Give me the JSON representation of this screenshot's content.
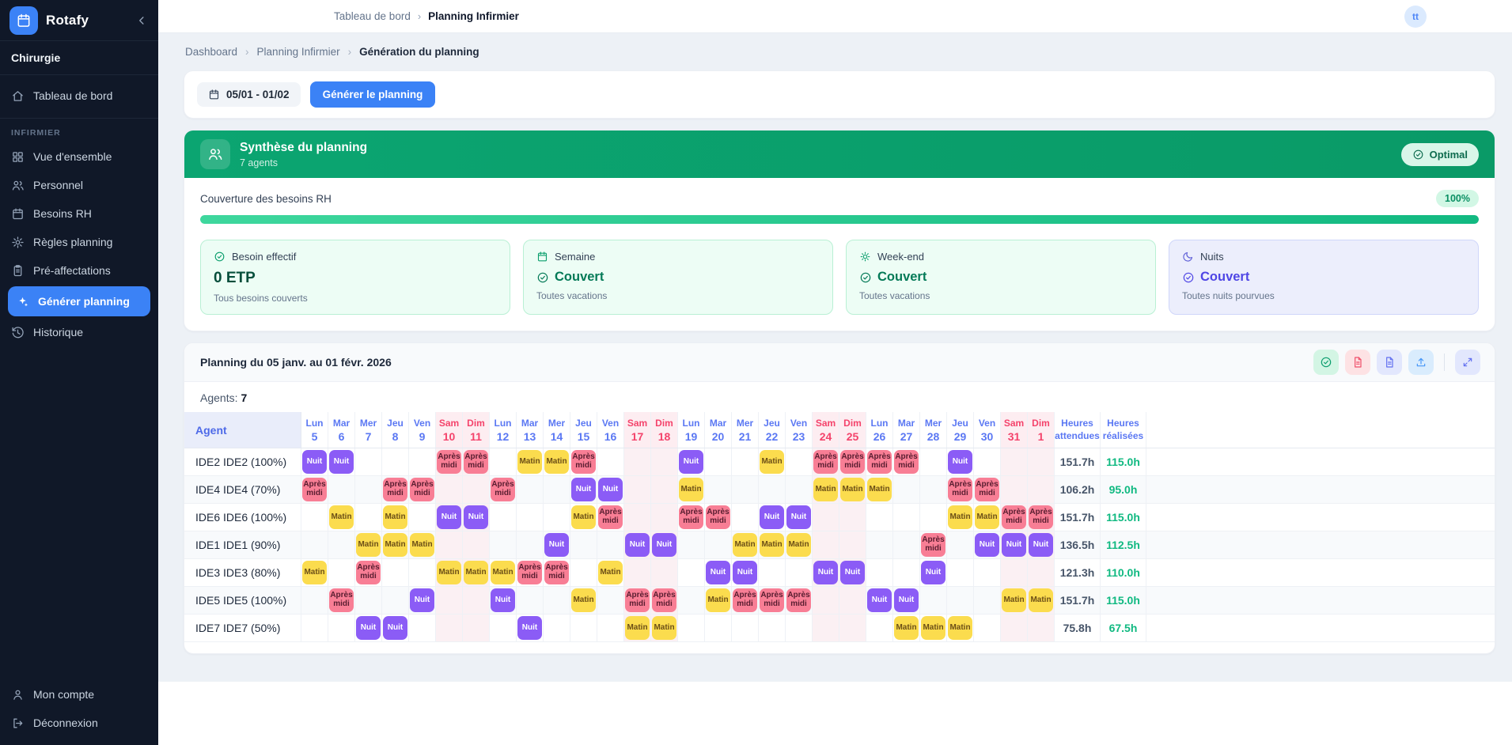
{
  "app": {
    "name": "Rotafy",
    "workspace": "Chirurgie"
  },
  "sidebar": {
    "section_label": "INFIRMIER",
    "items_top": [
      {
        "label": "Tableau de bord",
        "icon": "home"
      }
    ],
    "items": [
      {
        "label": "Vue d'ensemble",
        "icon": "grid",
        "active": false
      },
      {
        "label": "Personnel",
        "icon": "users",
        "active": false
      },
      {
        "label": "Besoins RH",
        "icon": "calendar",
        "active": false
      },
      {
        "label": "Règles planning",
        "icon": "gear",
        "active": false
      },
      {
        "label": "Pré-affectations",
        "icon": "clipboard",
        "active": false
      },
      {
        "label": "Générer planning",
        "icon": "sparkles",
        "active": true
      },
      {
        "label": "Historique",
        "icon": "history",
        "active": false
      }
    ],
    "footer": [
      {
        "label": "Mon compte",
        "icon": "user"
      },
      {
        "label": "Déconnexion",
        "icon": "logout"
      }
    ]
  },
  "topbar": {
    "breadcrumb": [
      "Tableau de bord",
      "Planning Infirmier"
    ],
    "avatar": "tt"
  },
  "page": {
    "breadcrumb": [
      "Dashboard",
      "Planning Infirmier",
      "Génération du planning"
    ]
  },
  "controls": {
    "date_range": "05/01 - 01/02",
    "generate": "Générer le planning"
  },
  "summary": {
    "title": "Synthèse du planning",
    "subtitle": "7 agents",
    "status": "Optimal",
    "coverage_label": "Couverture des besoins RH",
    "coverage_value": "100%",
    "coverage_percent": 100,
    "cards": [
      {
        "icon": "check-circle",
        "theme": "green",
        "label": "Besoin effectif",
        "value": "0 ETP",
        "value_style": "dark",
        "value_icon": "",
        "sub": "Tous besoins couverts"
      },
      {
        "icon": "calendar",
        "theme": "green",
        "label": "Semaine",
        "value": "Couvert",
        "value_style": "green",
        "value_icon": "check-circle",
        "sub": "Toutes vacations"
      },
      {
        "icon": "sun",
        "theme": "green",
        "label": "Week-end",
        "value": "Couvert",
        "value_style": "green",
        "value_icon": "check-circle",
        "sub": "Toutes vacations"
      },
      {
        "icon": "moon",
        "theme": "indigo",
        "label": "Nuits",
        "value": "Couvert",
        "value_style": "indigo",
        "value_icon": "check-circle",
        "sub": "Toutes nuits pourvues"
      }
    ]
  },
  "planning": {
    "title": "Planning du 05 janv. au 01 févr. 2026",
    "agents_label": "Agents:",
    "agents_count": "7",
    "agent_header": "Agent",
    "hours_headers": [
      [
        "Heures",
        "attendues"
      ],
      [
        "Heures",
        "réalisées"
      ]
    ],
    "shift_labels": {
      "M": "Matin",
      "A": "Après midi",
      "N": "Nuit"
    },
    "actions": [
      {
        "name": "validate-button",
        "icon": "check-circle",
        "theme": "green",
        "divided": false
      },
      {
        "name": "export-pdf-button",
        "icon": "file",
        "theme": "red",
        "divided": false
      },
      {
        "name": "export-doc-button",
        "icon": "file",
        "theme": "indigo",
        "divided": false
      },
      {
        "name": "upload-button",
        "icon": "upload",
        "theme": "blue",
        "divided": false
      },
      {
        "name": "fullscreen-button",
        "icon": "expand",
        "theme": "indigo",
        "divided": true
      }
    ],
    "days": [
      {
        "name": "Lun",
        "num": "5",
        "weekend": false
      },
      {
        "name": "Mar",
        "num": "6",
        "weekend": false
      },
      {
        "name": "Mer",
        "num": "7",
        "weekend": false
      },
      {
        "name": "Jeu",
        "num": "8",
        "weekend": false
      },
      {
        "name": "Ven",
        "num": "9",
        "weekend": false
      },
      {
        "name": "Sam",
        "num": "10",
        "weekend": true
      },
      {
        "name": "Dim",
        "num": "11",
        "weekend": true
      },
      {
        "name": "Lun",
        "num": "12",
        "weekend": false
      },
      {
        "name": "Mar",
        "num": "13",
        "weekend": false
      },
      {
        "name": "Mer",
        "num": "14",
        "weekend": false
      },
      {
        "name": "Jeu",
        "num": "15",
        "weekend": false
      },
      {
        "name": "Ven",
        "num": "16",
        "weekend": false
      },
      {
        "name": "Sam",
        "num": "17",
        "weekend": true
      },
      {
        "name": "Dim",
        "num": "18",
        "weekend": true
      },
      {
        "name": "Lun",
        "num": "19",
        "weekend": false
      },
      {
        "name": "Mar",
        "num": "20",
        "weekend": false
      },
      {
        "name": "Mer",
        "num": "21",
        "weekend": false
      },
      {
        "name": "Jeu",
        "num": "22",
        "weekend": false
      },
      {
        "name": "Ven",
        "num": "23",
        "weekend": false
      },
      {
        "name": "Sam",
        "num": "24",
        "weekend": true
      },
      {
        "name": "Dim",
        "num": "25",
        "weekend": true
      },
      {
        "name": "Lun",
        "num": "26",
        "weekend": false
      },
      {
        "name": "Mar",
        "num": "27",
        "weekend": false
      },
      {
        "name": "Mer",
        "num": "28",
        "weekend": false
      },
      {
        "name": "Jeu",
        "num": "29",
        "weekend": false
      },
      {
        "name": "Ven",
        "num": "30",
        "weekend": false
      },
      {
        "name": "Sam",
        "num": "31",
        "weekend": true
      },
      {
        "name": "Dim",
        "num": "1",
        "weekend": true
      }
    ],
    "rows": [
      {
        "agent": "IDE2 IDE2 (100%)",
        "shifts": [
          "N",
          "N",
          "",
          "",
          "",
          "A",
          "A",
          "",
          "M",
          "M",
          "A",
          "",
          "",
          "",
          "N",
          "",
          "",
          "M",
          "",
          "A",
          "A",
          "A",
          "A",
          "",
          "N",
          "",
          "",
          ""
        ],
        "expected": "151.7h",
        "realized": "115.0h"
      },
      {
        "agent": "IDE4 IDE4 (70%)",
        "shifts": [
          "A",
          "",
          "",
          "A",
          "A",
          "",
          "",
          "A",
          "",
          "",
          "N",
          "N",
          "",
          "",
          "M",
          "",
          "",
          "",
          "",
          "M",
          "M",
          "M",
          "",
          "",
          "A",
          "A",
          "",
          ""
        ],
        "expected": "106.2h",
        "realized": "95.0h"
      },
      {
        "agent": "IDE6 IDE6 (100%)",
        "shifts": [
          "",
          "M",
          "",
          "M",
          "",
          "N",
          "N",
          "",
          "",
          "",
          "M",
          "A",
          "",
          "",
          "A",
          "A",
          "",
          "N",
          "N",
          "",
          "",
          "",
          "",
          "",
          "M",
          "M",
          "A",
          "A"
        ],
        "expected": "151.7h",
        "realized": "115.0h"
      },
      {
        "agent": "IDE1 IDE1 (90%)",
        "shifts": [
          "",
          "",
          "M",
          "M",
          "M",
          "",
          "",
          "",
          "",
          "N",
          "",
          "",
          "N",
          "N",
          "",
          "",
          "M",
          "M",
          "M",
          "",
          "",
          "",
          "",
          "A",
          "",
          "N",
          "N",
          "N"
        ],
        "expected": "136.5h",
        "realized": "112.5h"
      },
      {
        "agent": "IDE3 IDE3 (80%)",
        "shifts": [
          "M",
          "",
          "A",
          "",
          "",
          "M",
          "M",
          "M",
          "A",
          "A",
          "",
          "M",
          "",
          "",
          "",
          "N",
          "N",
          "",
          "",
          "N",
          "N",
          "",
          "",
          "N",
          "",
          "",
          "",
          ""
        ],
        "expected": "121.3h",
        "realized": "110.0h"
      },
      {
        "agent": "IDE5 IDE5 (100%)",
        "shifts": [
          "",
          "A",
          "",
          "",
          "N",
          "",
          "",
          "N",
          "",
          "",
          "M",
          "",
          "A",
          "A",
          "",
          "M",
          "A",
          "A",
          "A",
          "",
          "",
          "N",
          "N",
          "",
          "",
          "",
          "M",
          "M"
        ],
        "expected": "151.7h",
        "realized": "115.0h"
      },
      {
        "agent": "IDE7 IDE7 (50%)",
        "shifts": [
          "",
          "",
          "N",
          "N",
          "",
          "",
          "",
          "",
          "N",
          "",
          "",
          "",
          "M",
          "M",
          "",
          "",
          "",
          "",
          "",
          "",
          "",
          "",
          "M",
          "M",
          "M",
          "",
          "",
          ""
        ],
        "expected": "75.8h",
        "realized": "67.5h"
      }
    ]
  }
}
